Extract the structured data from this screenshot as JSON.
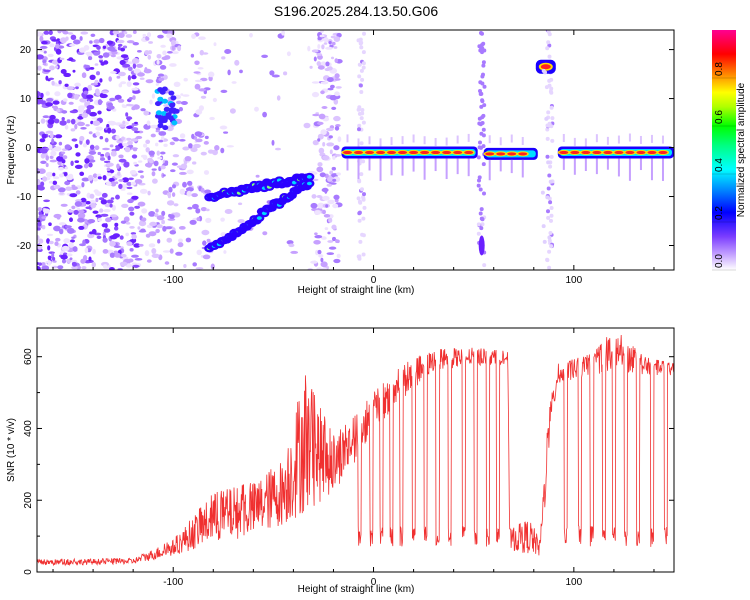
{
  "title": "S196.2025.284.13.50.G06",
  "chart_data": [
    {
      "type": "heatmap",
      "xlabel": "Height of straight line (km)",
      "ylabel": "Frequency (Hz)",
      "xlim": [
        -168,
        150
      ],
      "ylim": [
        -25,
        24
      ],
      "x_ticks": [
        -100,
        0,
        100
      ],
      "y_ticks": [
        -20,
        -10,
        0,
        10,
        20
      ],
      "colorbar": {
        "label": "Normalized spectral amplitude",
        "range": [
          0,
          1
        ],
        "ticks": [
          "0.0",
          "0.2",
          "0.4",
          "0.6",
          "0.8"
        ],
        "colors": [
          "#f0e6ff",
          "#c9a8ff",
          "#7a3cff",
          "#3a00ff",
          "#0000ff",
          "#0080ff",
          "#00ffff",
          "#00ff80",
          "#00ff00",
          "#80ff00",
          "#ffff00",
          "#ff8000",
          "#ff0000",
          "#ff0080"
        ]
      },
      "features": [
        {
          "name": "noise-cluster",
          "x": -103,
          "y": 8
        },
        {
          "name": "rising-track-upper",
          "x": [
            -82,
            -32
          ],
          "y": [
            -10,
            -6
          ]
        },
        {
          "name": "rising-track-lower",
          "x": [
            -82,
            -32
          ],
          "y": [
            -21,
            -7
          ]
        },
        {
          "name": "carrier-segment-1",
          "x": [
            -16,
            52
          ],
          "y": -1
        },
        {
          "name": "carrier-segment-2",
          "x": [
            55,
            82
          ],
          "y": -1.3
        },
        {
          "name": "carrier-segment-3",
          "x": [
            92,
            150
          ],
          "y": -1
        },
        {
          "name": "isolated-tone",
          "x": 86,
          "y": 16.5
        }
      ]
    },
    {
      "type": "line",
      "xlabel": "Height of straight line (km)",
      "ylabel": "SNR (10 * v/v)",
      "xlim": [
        -168,
        150
      ],
      "ylim": [
        0,
        680
      ],
      "x_ticks": [
        -100,
        0,
        100
      ],
      "y_ticks": [
        0,
        200,
        400,
        600
      ],
      "color": "#f03030",
      "envelope": [
        {
          "x": -168,
          "base": 18,
          "peak": 35
        },
        {
          "x": -120,
          "base": 22,
          "peak": 38
        },
        {
          "x": -100,
          "base": 45,
          "peak": 90
        },
        {
          "x": -80,
          "base": 80,
          "peak": 220
        },
        {
          "x": -60,
          "base": 100,
          "peak": 250
        },
        {
          "x": -45,
          "base": 130,
          "peak": 320
        },
        {
          "x": -35,
          "base": 160,
          "peak": 560
        },
        {
          "x": -20,
          "base": 220,
          "peak": 380
        },
        {
          "x": -10,
          "base": 300,
          "peak": 430
        },
        {
          "x": 0,
          "base": 390,
          "peak": 500
        },
        {
          "x": 15,
          "base": 480,
          "peak": 580
        },
        {
          "x": 30,
          "base": 560,
          "peak": 620
        },
        {
          "x": 50,
          "base": 575,
          "peak": 625
        },
        {
          "x": 67,
          "base": 580,
          "peak": 615
        },
        {
          "x": 68,
          "base": 60,
          "peak": 120
        },
        {
          "x": 78,
          "base": 50,
          "peak": 150
        },
        {
          "x": 83,
          "base": 40,
          "peak": 90
        },
        {
          "x": 86,
          "base": 200,
          "peak": 350
        },
        {
          "x": 88,
          "base": 380,
          "peak": 470
        },
        {
          "x": 92,
          "base": 520,
          "peak": 580
        },
        {
          "x": 110,
          "base": 550,
          "peak": 610
        },
        {
          "x": 120,
          "base": 560,
          "peak": 680
        },
        {
          "x": 135,
          "base": 550,
          "peak": 600
        },
        {
          "x": 150,
          "base": 545,
          "peak": 580
        }
      ],
      "dropouts": [
        -7,
        -1,
        4,
        9,
        14,
        20,
        26,
        32,
        38,
        45,
        51,
        57,
        62,
        96,
        103,
        109,
        115,
        120,
        126,
        132,
        139,
        146
      ]
    }
  ]
}
